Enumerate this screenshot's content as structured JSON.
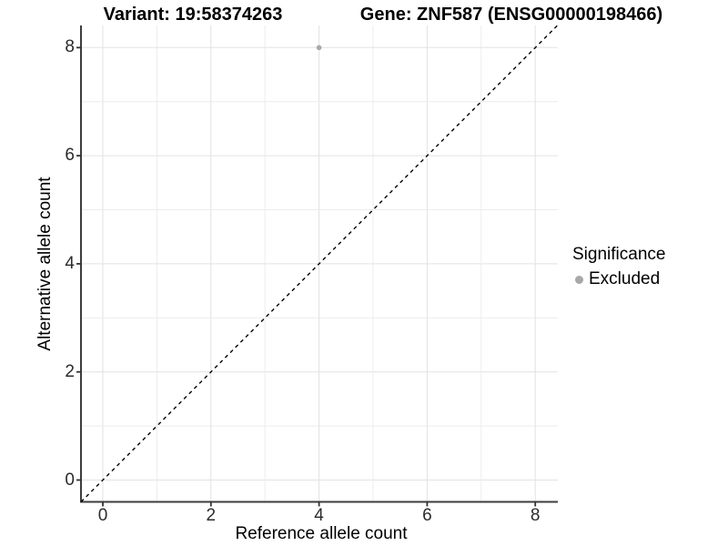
{
  "header": {
    "title_left": "Variant: 19:58374263",
    "title_right": "Gene: ZNF587 (ENSG00000198466)"
  },
  "chart_data": {
    "type": "scatter",
    "title": "Variant: 19:58374263 | Gene: ZNF587 (ENSG00000198466)",
    "xlabel": "Reference allele count",
    "ylabel": "Alternative allele count",
    "xlim": [
      -0.45,
      8.45
    ],
    "ylim": [
      -0.45,
      8.45
    ],
    "x_ticks": [
      0,
      2,
      4,
      6,
      8
    ],
    "y_ticks": [
      0,
      2,
      4,
      6,
      8
    ],
    "x_tick_labels": [
      "0",
      "2",
      "4",
      "6",
      "8"
    ],
    "y_tick_labels": [
      "0",
      "2",
      "4",
      "6",
      "8"
    ],
    "grid": "on",
    "grid_every": 1,
    "legend_position": "right",
    "reference_line": {
      "equation": "y = x",
      "style": "dashed",
      "color": "#000000"
    },
    "series": [
      {
        "name": "Excluded",
        "marker": "circle",
        "color": "#a8a8a8",
        "points": [
          {
            "x": 4,
            "y": 8
          }
        ]
      }
    ],
    "legend": {
      "title": "Significance",
      "items": [
        {
          "label": "Excluded",
          "color": "#a8a8a8",
          "marker": "circle"
        }
      ]
    }
  },
  "colors": {
    "background": "#ffffff",
    "grid_major": "#e2e2e2",
    "grid_minor": "#ececec",
    "axis_line": "#3d3d3d",
    "tick": "#333333",
    "point": "#a8a8a8",
    "reference_line": "#000000",
    "text": "#000000"
  }
}
